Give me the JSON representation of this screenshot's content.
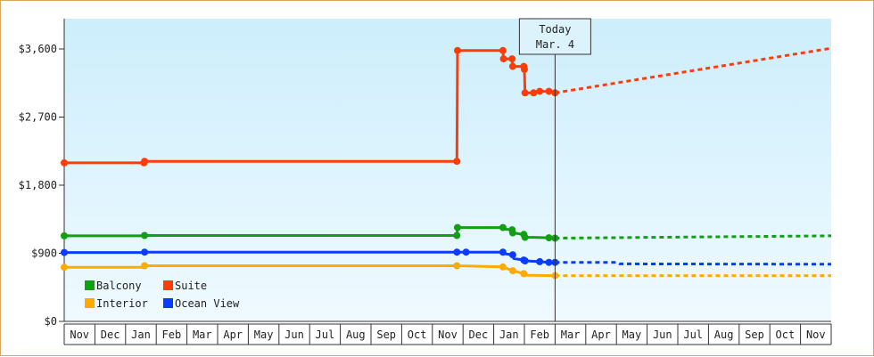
{
  "chart_data": {
    "type": "line",
    "title": "",
    "xlabel": "",
    "ylabel": "",
    "ylim": [
      0,
      4000
    ],
    "yticks": [
      {
        "value": 0,
        "label": "$0"
      },
      {
        "value": 900,
        "label": "$900"
      },
      {
        "value": 1800,
        "label": "$1,800"
      },
      {
        "value": 2700,
        "label": "$2,700"
      },
      {
        "value": 3600,
        "label": "$3,600"
      }
    ],
    "xlim": [
      0,
      25
    ],
    "month_labels": [
      "Nov",
      "Dec",
      "Jan",
      "Feb",
      "Mar",
      "Apr",
      "May",
      "Jun",
      "Jul",
      "Aug",
      "Sep",
      "Oct",
      "Nov",
      "Dec",
      "Jan",
      "Feb",
      "Mar",
      "Apr",
      "May",
      "Jun",
      "Jul",
      "Aug",
      "Sep",
      "Oct",
      "Nov"
    ],
    "today": {
      "x": 16.0,
      "label_line1": "Today",
      "label_line2": "Mar. 4"
    },
    "background": {
      "top": "#cdeefc",
      "bottom": "#effaff"
    },
    "legend": [
      {
        "name": "Balcony",
        "color": "#11a011"
      },
      {
        "name": "Suite",
        "color": "#ff3c08"
      },
      {
        "name": "Interior",
        "color": "#ffaa00"
      },
      {
        "name": "Ocean View",
        "color": "#0a3cff"
      }
    ],
    "series": [
      {
        "name": "Suite",
        "color": "#ff3c08",
        "points": [
          [
            0.0,
            2095
          ],
          [
            2.6,
            2095
          ],
          [
            2.62,
            2115
          ],
          [
            12.8,
            2115
          ],
          [
            12.82,
            3580
          ],
          [
            14.3,
            3580
          ],
          [
            14.32,
            3470
          ],
          [
            14.6,
            3470
          ],
          [
            14.62,
            3370
          ],
          [
            14.98,
            3370
          ],
          [
            15.0,
            3330
          ],
          [
            15.02,
            3020
          ],
          [
            15.3,
            3020
          ],
          [
            15.5,
            3040
          ],
          [
            15.8,
            3040
          ],
          [
            16.0,
            3020
          ]
        ],
        "markers": [
          0.0,
          2.6,
          2.62,
          12.8,
          12.82,
          14.3,
          14.32,
          14.6,
          14.62,
          14.98,
          15.0,
          15.02,
          15.3,
          15.5,
          15.8,
          16.0
        ],
        "forecast": [
          [
            16.0,
            3020
          ],
          [
            25.0,
            3610
          ]
        ]
      },
      {
        "name": "Balcony",
        "color": "#11a011",
        "points": [
          [
            0.0,
            1130
          ],
          [
            2.6,
            1130
          ],
          [
            2.62,
            1135
          ],
          [
            12.8,
            1135
          ],
          [
            12.82,
            1240
          ],
          [
            14.3,
            1240
          ],
          [
            14.32,
            1220
          ],
          [
            14.6,
            1210
          ],
          [
            14.62,
            1170
          ],
          [
            14.98,
            1150
          ],
          [
            15.0,
            1120
          ],
          [
            15.02,
            1110
          ],
          [
            15.3,
            1110
          ],
          [
            15.8,
            1105
          ],
          [
            16.0,
            1100
          ]
        ],
        "markers": [
          0.0,
          2.62,
          12.8,
          12.82,
          14.3,
          14.6,
          14.62,
          14.98,
          15.02,
          15.8,
          16.0
        ],
        "forecast": [
          [
            16.0,
            1100
          ],
          [
            17.5,
            1105
          ],
          [
            20.5,
            1115
          ],
          [
            25.0,
            1130
          ]
        ]
      },
      {
        "name": "Ocean View",
        "color": "#0a3cff",
        "points": [
          [
            0.0,
            910
          ],
          [
            2.6,
            910
          ],
          [
            2.62,
            915
          ],
          [
            12.8,
            915
          ],
          [
            13.1,
            915
          ],
          [
            14.3,
            915
          ],
          [
            14.32,
            895
          ],
          [
            14.62,
            880
          ],
          [
            14.65,
            830
          ],
          [
            14.98,
            810
          ],
          [
            15.02,
            800
          ],
          [
            15.5,
            790
          ],
          [
            15.8,
            780
          ],
          [
            16.0,
            780
          ]
        ],
        "markers": [
          0.0,
          2.62,
          12.8,
          13.1,
          14.3,
          14.62,
          14.98,
          15.02,
          15.5,
          15.8,
          16.0
        ],
        "forecast": [
          [
            16.0,
            780
          ],
          [
            18.0,
            780
          ],
          [
            18.1,
            760
          ],
          [
            25.0,
            755
          ]
        ]
      },
      {
        "name": "Interior",
        "color": "#ffaa00",
        "points": [
          [
            0.0,
            715
          ],
          [
            2.6,
            715
          ],
          [
            2.62,
            735
          ],
          [
            12.8,
            735
          ],
          [
            14.3,
            720
          ],
          [
            14.62,
            670
          ],
          [
            14.98,
            630
          ],
          [
            15.02,
            610
          ],
          [
            16.0,
            605
          ]
        ],
        "markers": [
          0.0,
          2.62,
          12.8,
          14.3,
          14.62,
          14.98,
          16.0
        ],
        "forecast": [
          [
            16.0,
            605
          ],
          [
            25.0,
            605
          ]
        ]
      }
    ]
  }
}
